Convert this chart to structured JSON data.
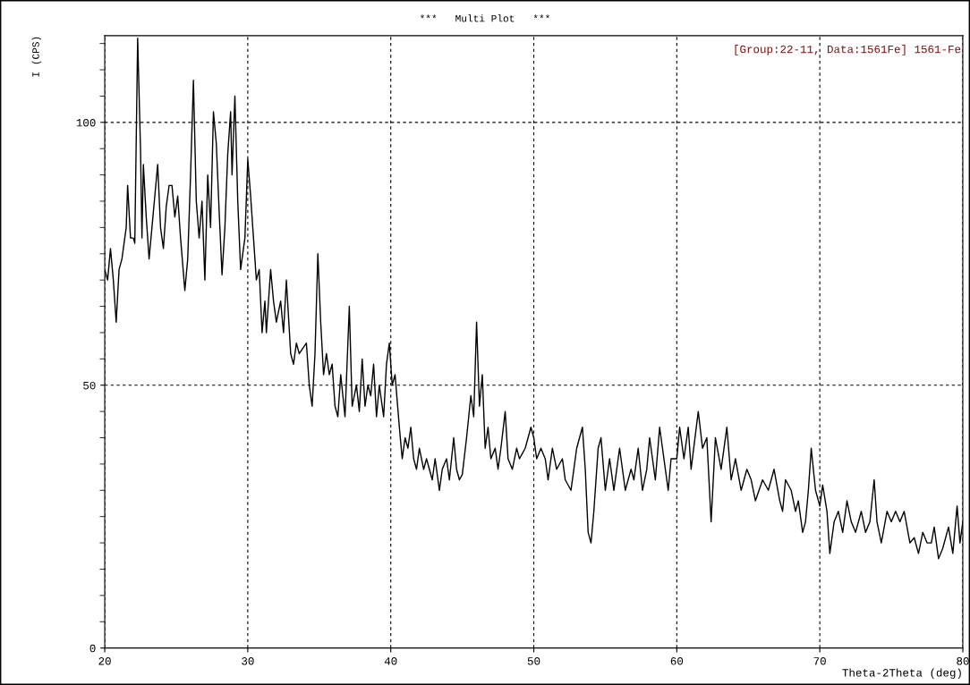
{
  "chart_data": {
    "type": "line",
    "title": "***   Multi Plot   ***",
    "xlabel": "Theta-2Theta (deg)",
    "ylabel": "I (CPS)",
    "annotations": [
      "[Group:22-11, Data:1561Fe] 1561-Fe"
    ],
    "xlim": [
      20,
      80
    ],
    "xticks": [
      20,
      30,
      40,
      50,
      60,
      70,
      80
    ],
    "ylim": [
      0,
      116.5
    ],
    "yticks": [
      0,
      {
        "value": 5,
        "label": null
      },
      {
        "value": 10,
        "label": null
      },
      {
        "value": 15,
        "label": null
      },
      {
        "value": 20,
        "label": null
      },
      {
        "value": 25,
        "label": null
      },
      {
        "value": 30,
        "label": null
      },
      {
        "value": 35,
        "label": null
      },
      {
        "value": 40,
        "label": null
      },
      {
        "value": 45,
        "label": null
      },
      50,
      {
        "value": 55,
        "label": null
      },
      {
        "value": 60,
        "label": null
      },
      {
        "value": 65,
        "label": null
      },
      {
        "value": 70,
        "label": null
      },
      {
        "value": 75,
        "label": null
      },
      {
        "value": 80,
        "label": null
      },
      {
        "value": 85,
        "label": null
      },
      {
        "value": 90,
        "label": null
      },
      {
        "value": 95,
        "label": null
      },
      100,
      {
        "value": 105,
        "label": null
      },
      {
        "value": 110,
        "label": null
      },
      {
        "value": 115,
        "label": null
      }
    ],
    "grid": true,
    "line_style": "solid",
    "marker": "none",
    "series": [
      {
        "color": "#000000",
        "x": [
          20.0,
          20.2,
          20.4,
          20.6,
          20.8,
          21.0,
          21.2,
          21.5,
          21.6,
          21.8,
          22.0,
          22.1,
          22.3,
          22.5,
          22.6,
          22.7,
          22.9,
          23.1,
          23.3,
          23.5,
          23.7,
          23.9,
          24.1,
          24.3,
          24.5,
          24.7,
          24.9,
          25.1,
          25.3,
          25.6,
          25.8,
          26.0,
          26.2,
          26.4,
          26.6,
          26.8,
          27.0,
          27.2,
          27.4,
          27.6,
          27.8,
          28.0,
          28.2,
          28.4,
          28.6,
          28.8,
          28.9,
          29.1,
          29.3,
          29.5,
          29.8,
          30.0,
          30.2,
          30.4,
          30.6,
          30.8,
          31.0,
          31.2,
          31.3,
          31.6,
          31.8,
          32.0,
          32.3,
          32.5,
          32.7,
          33.0,
          33.2,
          33.4,
          33.6,
          34.1,
          34.3,
          34.5,
          34.7,
          34.9,
          35.1,
          35.3,
          35.5,
          35.7,
          35.9,
          36.1,
          36.3,
          36.5,
          36.8,
          37.0,
          37.1,
          37.3,
          37.6,
          37.8,
          38.0,
          38.2,
          38.4,
          38.6,
          38.8,
          39.0,
          39.2,
          39.5,
          39.7,
          39.9,
          40.1,
          40.3,
          40.6,
          40.8,
          41.0,
          41.2,
          41.4,
          41.6,
          41.8,
          42.0,
          42.3,
          42.5,
          42.9,
          43.1,
          43.4,
          43.6,
          43.9,
          44.1,
          44.4,
          44.6,
          44.8,
          45.0,
          45.3,
          45.6,
          45.8,
          46.0,
          46.2,
          46.4,
          46.6,
          46.8,
          47.0,
          47.3,
          47.5,
          47.7,
          48.0,
          48.2,
          48.5,
          48.8,
          49.0,
          49.4,
          49.8,
          50.0,
          50.2,
          50.5,
          50.8,
          51.0,
          51.3,
          51.6,
          52.0,
          52.2,
          52.6,
          53.0,
          53.4,
          53.6,
          53.8,
          54.0,
          54.2,
          54.5,
          54.7,
          55.0,
          55.3,
          55.6,
          56.0,
          56.4,
          56.8,
          57.0,
          57.3,
          57.6,
          57.9,
          58.1,
          58.5,
          58.8,
          59.0,
          59.4,
          59.6,
          60.0,
          60.2,
          60.5,
          60.8,
          61.0,
          61.5,
          61.8,
          62.1,
          62.4,
          62.7,
          63.1,
          63.5,
          63.8,
          64.1,
          64.5,
          64.9,
          65.2,
          65.5,
          66.0,
          66.4,
          66.8,
          67.2,
          67.4,
          67.6,
          68.0,
          68.3,
          68.5,
          68.8,
          69.0,
          69.2,
          69.4,
          69.7,
          70.0,
          70.2,
          70.5,
          70.7,
          71.0,
          71.3,
          71.6,
          71.9,
          72.2,
          72.5,
          72.9,
          73.2,
          73.5,
          73.8,
          74.0,
          74.3,
          74.7,
          75.0,
          75.3,
          75.6,
          75.9,
          76.3,
          76.6,
          76.9,
          77.2,
          77.5,
          77.8,
          78.0,
          78.3,
          78.6,
          79.0,
          79.3,
          79.6,
          79.8,
          80.0
        ],
        "values": [
          72,
          70,
          76,
          70,
          62,
          72,
          74,
          80,
          88,
          78,
          78,
          77,
          116,
          95,
          78,
          92,
          82,
          74,
          80,
          86,
          92,
          80,
          76,
          84,
          88,
          88,
          82,
          86,
          78,
          68,
          74,
          90,
          108,
          85,
          78,
          85,
          70,
          90,
          80,
          102,
          96,
          83,
          71,
          80,
          94,
          102,
          90,
          105,
          85,
          72,
          78,
          93,
          86,
          78,
          70,
          72,
          60,
          66,
          60,
          72,
          66,
          62,
          66,
          60,
          70,
          56,
          54,
          58,
          56,
          58,
          50,
          46,
          56,
          75,
          62,
          52,
          56,
          52,
          54,
          46,
          44,
          52,
          44,
          58,
          65,
          46,
          50,
          45,
          55,
          46,
          50,
          48,
          54,
          44,
          50,
          44,
          54,
          58,
          50,
          52,
          42,
          36,
          40,
          38,
          42,
          36,
          34,
          38,
          34,
          36,
          32,
          36,
          30,
          34,
          36,
          32,
          40,
          34,
          32,
          33,
          40,
          48,
          44,
          62,
          46,
          52,
          38,
          42,
          36,
          38,
          34,
          38,
          45,
          36,
          34,
          38,
          36,
          38,
          42,
          40,
          36,
          38,
          36,
          32,
          38,
          34,
          36,
          32,
          30,
          38,
          42,
          34,
          22,
          20,
          26,
          38,
          40,
          30,
          36,
          30,
          38,
          30,
          34,
          32,
          38,
          30,
          34,
          40,
          32,
          42,
          38,
          30,
          36,
          36,
          42,
          36,
          42,
          34,
          45,
          38,
          40,
          24,
          40,
          34,
          42,
          32,
          36,
          30,
          34,
          32,
          28,
          32,
          30,
          34,
          28,
          26,
          32,
          30,
          26,
          28,
          22,
          24,
          30,
          38,
          30,
          27,
          31,
          26,
          18,
          24,
          26,
          22,
          28,
          24,
          22,
          26,
          22,
          24,
          32,
          24,
          20,
          26,
          24,
          26,
          24,
          26,
          20,
          21,
          18,
          22,
          20,
          20,
          23,
          17,
          19,
          23,
          18,
          27,
          20,
          24
        ]
      }
    ]
  }
}
